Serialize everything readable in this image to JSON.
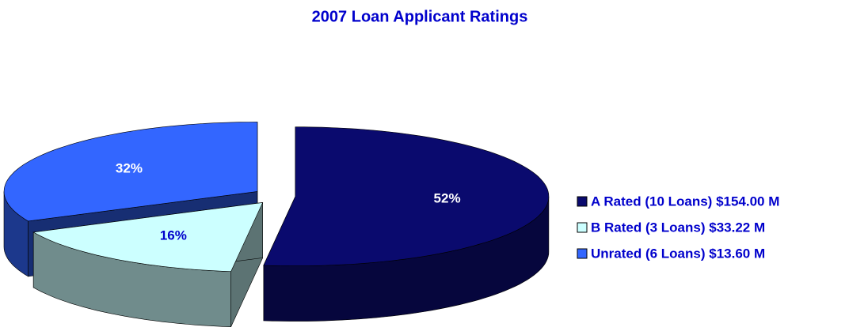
{
  "chart_data": {
    "type": "pie3d",
    "title": "2007 Loan Applicant Ratings",
    "categories": [
      "A Rated (10 Loans) $154.00 M",
      "B Rated (3 Loans) $33.22 M",
      "Unrated (6 Loans) $13.60 M"
    ],
    "values": [
      52,
      16,
      32
    ],
    "value_labels": [
      "52%",
      "16%",
      "32%"
    ],
    "colors": [
      "#0a0a6e",
      "#ccffff",
      "#3366ff"
    ],
    "legend": "right"
  }
}
